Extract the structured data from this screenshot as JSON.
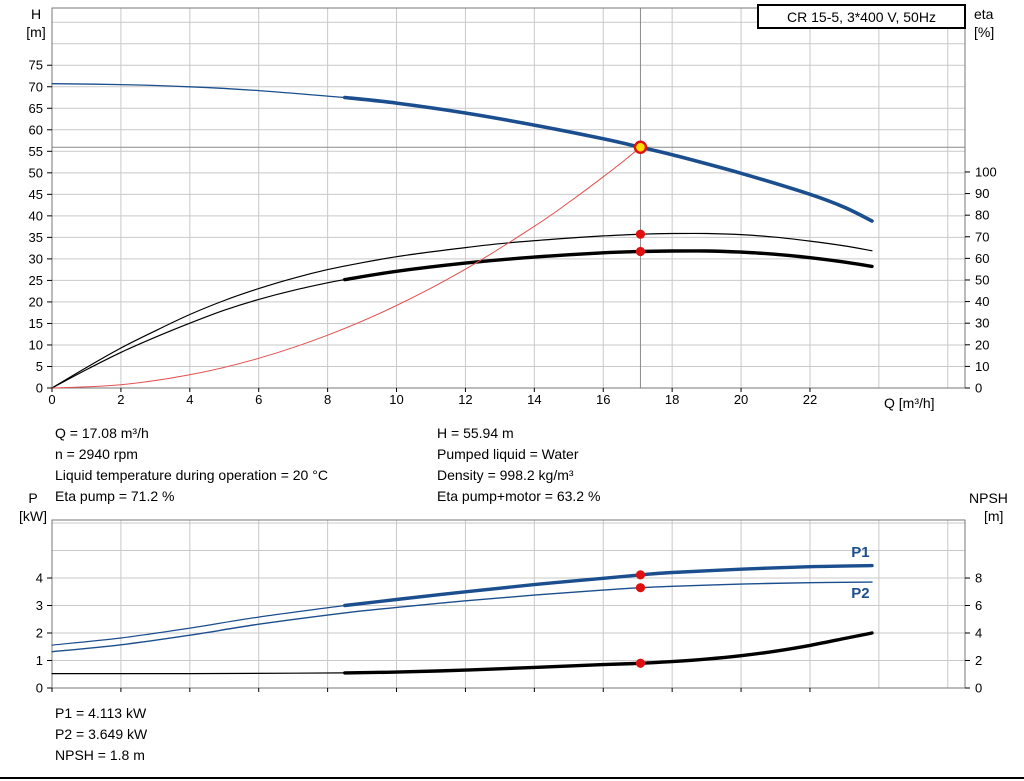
{
  "header": {
    "title": "CR 15-5, 3*400 V, 50Hz"
  },
  "info": {
    "top_left": [
      "Q = 17.08 m³/h",
      "n = 2940 rpm",
      "Liquid temperature during operation = 20 °C",
      "Eta pump = 71.2 %"
    ],
    "top_right": [
      "H = 55.94 m",
      "Pumped liquid = Water",
      "Density = 998.2 kg/m³",
      "Eta pump+motor = 63.2 %"
    ],
    "bottom": [
      "P1 = 4.113 kW",
      "P2 = 3.649 kW",
      "NPSH = 1.8 m"
    ]
  },
  "colors": {
    "grid": "#c9c9c9",
    "axis": "#777777",
    "crosshair": "#8a8a8a",
    "curve_blue": "#1b4e8e",
    "curve_black": "#000000",
    "curve_red": "#e35050",
    "duty_fill": "#ffdf00",
    "duty_ring": "#e01010",
    "dot": "#e01010"
  },
  "chart_data": [
    {
      "type": "line",
      "title": "Pump head and efficiency vs flow",
      "x_axis": {
        "label": "Q [m³/h]",
        "range": [
          0,
          26.5
        ],
        "grid_step": 2,
        "ticks": [
          0,
          2,
          4,
          6,
          8,
          10,
          12,
          14,
          16,
          18,
          20,
          22
        ],
        "show_tick_labels": true
      },
      "left_axis": {
        "label": "H [m]",
        "title_lines": [
          "H",
          "[m]"
        ],
        "range": [
          0,
          88.3
        ],
        "grid_step": 5,
        "ticks": [
          0,
          5,
          10,
          15,
          20,
          25,
          30,
          35,
          40,
          45,
          50,
          55,
          60,
          65,
          70,
          75
        ]
      },
      "right_axis": {
        "label": "eta [%]",
        "title_lines": [
          "eta",
          "[%]"
        ],
        "range": [
          0,
          175.9
        ],
        "ticks": [
          0,
          10,
          20,
          30,
          40,
          50,
          60,
          70,
          80,
          90,
          100
        ]
      },
      "series": [
        {
          "name": "head-curve",
          "axis": "left",
          "color": "#1b4e8e",
          "width": 1.3,
          "points": [
            [
              0,
              70.7
            ],
            [
              2,
              70.5
            ],
            [
              4,
              70.0
            ],
            [
              6,
              69.1
            ],
            [
              8.5,
              67.5
            ]
          ]
        },
        {
          "name": "head-curve-duty-range",
          "axis": "left",
          "color": "#1b4e8e",
          "width": 3.6,
          "points": [
            [
              8.5,
              67.5
            ],
            [
              10,
              66.2
            ],
            [
              12,
              63.9
            ],
            [
              14,
              61.1
            ],
            [
              16,
              57.9
            ],
            [
              17.08,
              55.94
            ],
            [
              18,
              54.2
            ],
            [
              20,
              49.9
            ],
            [
              22,
              45.0
            ],
            [
              23,
              42.0
            ],
            [
              23.8,
              38.8
            ]
          ]
        },
        {
          "name": "eta-pump",
          "axis": "right",
          "color": "#000000",
          "width": 1.2,
          "points": [
            [
              0,
              0
            ],
            [
              1,
              9.5
            ],
            [
              2,
              18.5
            ],
            [
              3,
              26.5
            ],
            [
              4,
              34
            ],
            [
              5,
              40.5
            ],
            [
              6,
              46
            ],
            [
              7,
              50.8
            ],
            [
              8,
              54.8
            ],
            [
              9,
              58
            ],
            [
              10,
              60.8
            ],
            [
              11,
              63
            ],
            [
              12,
              65
            ],
            [
              13,
              66.8
            ],
            [
              14,
              68.2
            ],
            [
              15,
              69.4
            ],
            [
              16,
              70.4
            ],
            [
              17.08,
              71.2
            ],
            [
              18,
              71.5
            ],
            [
              19,
              71.5
            ],
            [
              20,
              71
            ],
            [
              21,
              69.8
            ],
            [
              22,
              68
            ],
            [
              23,
              65.8
            ],
            [
              23.8,
              63.5
            ]
          ]
        },
        {
          "name": "eta-pump-motor",
          "axis": "right",
          "color": "#000000",
          "width": 1.2,
          "points": [
            [
              0,
              0
            ],
            [
              1,
              8.5
            ],
            [
              2,
              16.5
            ],
            [
              3,
              23.5
            ],
            [
              4,
              30
            ],
            [
              5,
              36
            ],
            [
              6,
              41
            ],
            [
              7,
              45.2
            ],
            [
              8,
              48.7
            ],
            [
              8.5,
              50.2
            ]
          ]
        },
        {
          "name": "eta-pump-motor-duty-range",
          "axis": "right",
          "color": "#000000",
          "width": 3.4,
          "points": [
            [
              8.5,
              50.2
            ],
            [
              10,
              54
            ],
            [
              12,
              57.8
            ],
            [
              14,
              60.6
            ],
            [
              16,
              62.6
            ],
            [
              17.08,
              63.2
            ],
            [
              18,
              63.4
            ],
            [
              19,
              63.4
            ],
            [
              20,
              62.9
            ],
            [
              21,
              61.9
            ],
            [
              22,
              60.3
            ],
            [
              23,
              58.3
            ],
            [
              23.8,
              56.3
            ]
          ]
        },
        {
          "name": "system-curve",
          "axis": "left",
          "color": "#e35050",
          "width": 1,
          "points": [
            [
              0,
              0
            ],
            [
              2,
              0.77
            ],
            [
              4,
              3.07
            ],
            [
              6,
              6.9
            ],
            [
              8,
              12.27
            ],
            [
              10,
              19.17
            ],
            [
              12,
              27.6
            ],
            [
              14,
              37.57
            ],
            [
              15,
              43.13
            ],
            [
              16,
              49.07
            ],
            [
              16.6,
              52.8
            ],
            [
              17.08,
              55.94
            ]
          ]
        }
      ],
      "markers": [
        {
          "style": "duty",
          "q": 17.08,
          "value": 55.94,
          "axis": "left",
          "label": "duty point"
        },
        {
          "style": "dot",
          "q": 17.08,
          "value": 71.2,
          "axis": "right",
          "label": "eta pump operating point"
        },
        {
          "style": "dot",
          "q": 17.08,
          "value": 63.2,
          "axis": "right",
          "label": "eta pump+motor operating point"
        }
      ],
      "crosshair": {
        "q": 17.08,
        "value": 55.94
      }
    },
    {
      "type": "line",
      "title": "Power and NPSH vs flow",
      "x_axis": {
        "label": "",
        "range": [
          0,
          26.5
        ],
        "grid_step": 2,
        "ticks": [
          0,
          2,
          4,
          6,
          8,
          10,
          12,
          14,
          16,
          18,
          20,
          22
        ],
        "show_tick_labels": false
      },
      "left_axis": {
        "label": "P [kW]",
        "title_lines": [
          "P",
          "[kW]"
        ],
        "range": [
          0,
          6.11
        ],
        "grid_step": 1,
        "ticks": [
          0,
          1,
          2,
          3,
          4
        ]
      },
      "right_axis": {
        "label": "NPSH [m]",
        "title_lines": [
          "NPSH",
          "[m]"
        ],
        "range": [
          0,
          12.22
        ],
        "ticks": [
          0,
          2,
          4,
          6,
          8
        ]
      },
      "series": [
        {
          "name": "p1",
          "axis": "left",
          "color": "#1b4e8e",
          "width": 1.2,
          "points": [
            [
              0,
              1.56
            ],
            [
              2,
              1.82
            ],
            [
              4,
              2.18
            ],
            [
              6,
              2.58
            ],
            [
              8.5,
              3.0
            ]
          ]
        },
        {
          "name": "p1-duty-range",
          "axis": "left",
          "color": "#1b4e8e",
          "width": 3.4,
          "points": [
            [
              8.5,
              3.0
            ],
            [
              10,
              3.22
            ],
            [
              12,
              3.5
            ],
            [
              14,
              3.76
            ],
            [
              16,
              3.99
            ],
            [
              17.08,
              4.113
            ],
            [
              18,
              4.2
            ],
            [
              20,
              4.32
            ],
            [
              22,
              4.41
            ],
            [
              23.8,
              4.45
            ]
          ]
        },
        {
          "name": "p2",
          "axis": "left",
          "color": "#1b4e8e",
          "width": 1.4,
          "points": [
            [
              0,
              1.32
            ],
            [
              2,
              1.57
            ],
            [
              4,
              1.92
            ],
            [
              6,
              2.32
            ],
            [
              8.5,
              2.73
            ],
            [
              10,
              2.93
            ],
            [
              12,
              3.17
            ],
            [
              14,
              3.38
            ],
            [
              16,
              3.56
            ],
            [
              17.08,
              3.649
            ],
            [
              18,
              3.7
            ],
            [
              20,
              3.78
            ],
            [
              22,
              3.83
            ],
            [
              23.8,
              3.85
            ]
          ]
        },
        {
          "name": "npsh",
          "axis": "right",
          "color": "#000000",
          "width": 1.2,
          "points": [
            [
              0,
              1.05
            ],
            [
              4,
              1.05
            ],
            [
              7,
              1.08
            ],
            [
              8.5,
              1.1
            ]
          ]
        },
        {
          "name": "npsh-duty-range",
          "axis": "right",
          "color": "#000000",
          "width": 3.4,
          "points": [
            [
              8.5,
              1.1
            ],
            [
              10,
              1.16
            ],
            [
              12,
              1.3
            ],
            [
              14,
              1.5
            ],
            [
              16,
              1.7
            ],
            [
              17.08,
              1.8
            ],
            [
              18,
              1.92
            ],
            [
              19,
              2.1
            ],
            [
              20,
              2.35
            ],
            [
              21,
              2.68
            ],
            [
              22,
              3.1
            ],
            [
              23,
              3.6
            ],
            [
              23.8,
              4.0
            ]
          ]
        }
      ],
      "markers": [
        {
          "style": "dot",
          "q": 17.08,
          "value": 4.113,
          "axis": "left",
          "label": "P1 operating point"
        },
        {
          "style": "dot",
          "q": 17.08,
          "value": 3.649,
          "axis": "left",
          "label": "P2 operating point"
        },
        {
          "style": "dot",
          "q": 17.08,
          "value": 1.8,
          "axis": "right",
          "label": "NPSH operating point"
        }
      ],
      "labels": [
        {
          "text": "P1",
          "q": 23.2,
          "value": 4.95,
          "axis": "left",
          "color": "#1b4e8e"
        },
        {
          "text": "P2",
          "q": 23.2,
          "value": 3.45,
          "axis": "left",
          "color": "#1b4e8e"
        }
      ]
    }
  ]
}
